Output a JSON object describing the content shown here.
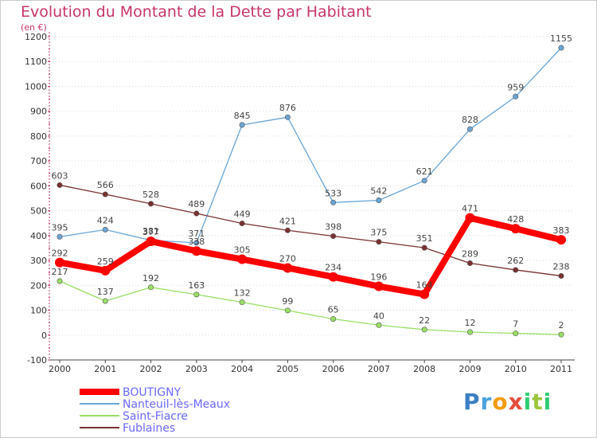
{
  "chart_data": {
    "type": "line",
    "title": "Evolution du Montant de la Dette par Habitant",
    "subtitle": "(en €)",
    "x": [
      "2000",
      "2001",
      "2002",
      "2003",
      "2004",
      "2005",
      "2006",
      "2007",
      "2008",
      "2009",
      "2010",
      "2011"
    ],
    "ylim": [
      -100,
      1200
    ],
    "yticks": [
      -100,
      0,
      100,
      200,
      300,
      400,
      500,
      600,
      700,
      800,
      900,
      1000,
      1100,
      1200
    ],
    "grid": "dotted-horizontal",
    "legend_position": "bottom-left",
    "series": [
      {
        "name": "BOUTIGNY",
        "color": "#ff0000",
        "values": [
          292,
          259,
          377,
          338,
          305,
          270,
          234,
          196,
          164,
          471,
          428,
          383
        ]
      },
      {
        "name": "Nanteuil-lès-Meaux",
        "color": "#6aa5d6",
        "values": [
          395,
          424,
          381,
          371,
          845,
          876,
          533,
          542,
          621,
          828,
          959,
          1155
        ]
      },
      {
        "name": "Saint-Fiacre",
        "color": "#99e066",
        "values": [
          217,
          137,
          192,
          163,
          132,
          99,
          65,
          40,
          22,
          12,
          7,
          2
        ]
      },
      {
        "name": "Fublaines",
        "color": "#7a3030",
        "values": [
          603,
          566,
          528,
          489,
          449,
          421,
          398,
          375,
          351,
          289,
          262,
          238
        ]
      }
    ]
  },
  "logo": {
    "letters": [
      "P",
      "r",
      "o",
      "x",
      "i",
      "t",
      "i"
    ]
  }
}
